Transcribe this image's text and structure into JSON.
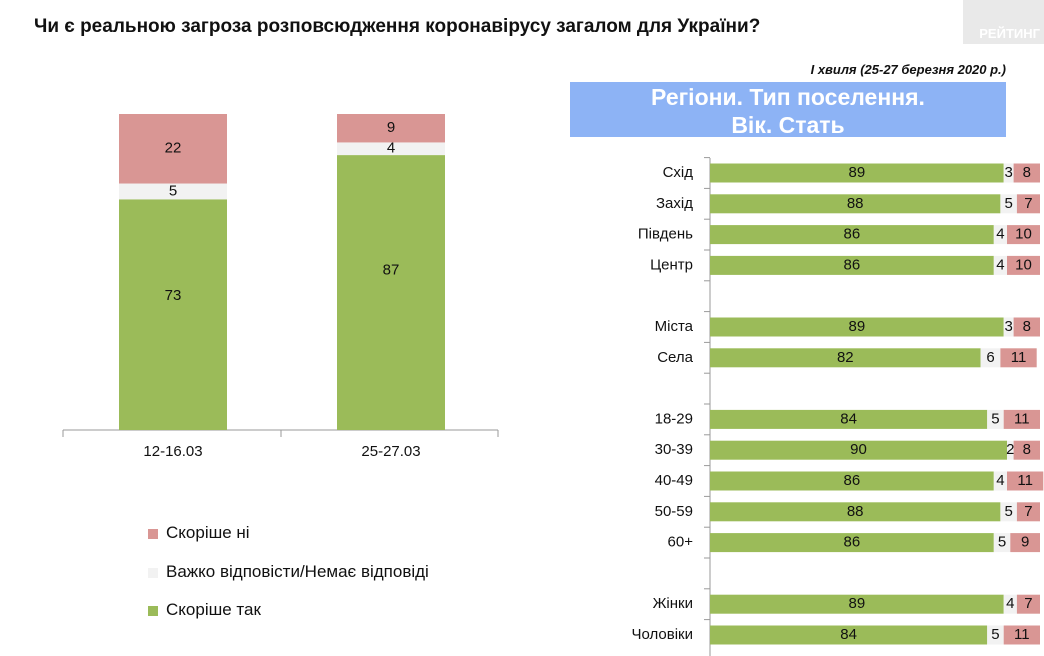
{
  "title": "Чи є реальною загроза розповсюдження коронавірусу загалом для України?",
  "brand": "РЕЙТИНГ",
  "wave_note": "І хвиля (25-27 березня 2020 р.)",
  "banner": {
    "line1": "Регіони. Тип поселення.",
    "line2": "Вік. Стать"
  },
  "colors": {
    "no": "#d99694",
    "hard": "#f2f2f2",
    "yes": "#9bbb59"
  },
  "legend": [
    {
      "key": "no",
      "label": "Скоріше  ні"
    },
    {
      "key": "hard",
      "label": "Важко відповісти/Немає відповіді"
    },
    {
      "key": "yes",
      "label": "Скоріше  так"
    }
  ],
  "chart_data": [
    {
      "type": "bar",
      "stacked": true,
      "categories": [
        "12-16.03",
        "25-27.03"
      ],
      "series": [
        {
          "name": "Скоріше  так",
          "values": [
            73,
            87
          ]
        },
        {
          "name": "Важко відповісти/Немає відповіді",
          "values": [
            5,
            4
          ]
        },
        {
          "name": "Скоріше  ні",
          "values": [
            22,
            9
          ]
        }
      ],
      "ylim": [
        0,
        100
      ],
      "legend": "bottom"
    },
    {
      "type": "bar",
      "orientation": "horizontal",
      "stacked": true,
      "categories": [
        "Схід",
        "Захід",
        "Південь",
        "Центр",
        "",
        "Міста",
        "Села",
        "",
        "18-29",
        "30-39",
        "40-49",
        "50-59",
        "60+",
        "",
        "Жінки",
        "Чоловіки"
      ],
      "series": [
        {
          "name": "Скоріше  так",
          "values": [
            89,
            88,
            86,
            86,
            null,
            89,
            82,
            null,
            84,
            90,
            86,
            88,
            86,
            null,
            89,
            84
          ]
        },
        {
          "name": "Важко відповісти/Немає відповіді",
          "values": [
            3,
            5,
            4,
            4,
            null,
            3,
            6,
            null,
            5,
            2,
            4,
            5,
            5,
            null,
            4,
            5
          ]
        },
        {
          "name": "Скоріше  ні",
          "values": [
            8,
            7,
            10,
            10,
            null,
            8,
            11,
            null,
            11,
            8,
            11,
            7,
            9,
            null,
            7,
            11
          ]
        }
      ],
      "xlim": [
        0,
        100
      ]
    }
  ]
}
